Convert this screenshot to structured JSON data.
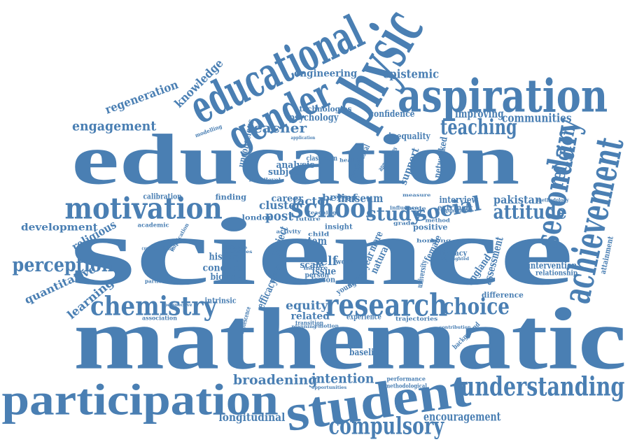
{
  "cloud": {
    "color": "#4a7fb3",
    "words": [
      "science",
      "mathematic",
      "education",
      "student",
      "participation",
      "aspiration",
      "physic",
      "educational",
      "achievement",
      "gender",
      "motivation",
      "research",
      "chemistry",
      "school",
      "secondary",
      "understanding",
      "compulsory",
      "teaching",
      "attitude",
      "study",
      "social",
      "choice",
      "perception",
      "religion",
      "broadening",
      "intention",
      "engagement",
      "regeneration",
      "knowledge",
      "epistemic",
      "communities",
      "improving",
      "teacher",
      "engineering",
      "psychology",
      "technologies",
      "confidence",
      "inequality",
      "unconscious",
      "analysis",
      "subject",
      "support",
      "networked",
      "pakistan",
      "interview",
      "extrinsic",
      "positive",
      "development",
      "religious",
      "quantitative",
      "learning",
      "calibration",
      "academic",
      "finding",
      "london",
      "museum",
      "factor",
      "career",
      "cluster",
      "post",
      "belief",
      "history",
      "concept",
      "biology",
      "stem",
      "project",
      "natural",
      "more",
      "female",
      "assessment",
      "england",
      "literacy",
      "issue",
      "self",
      "scale",
      "lesson",
      "efficacy",
      "equity",
      "related",
      "experience",
      "intrinsic",
      "association",
      "difference",
      "intervention",
      "relationship",
      "attainment",
      "longitudinal",
      "encouragement",
      "baseline",
      "performance",
      "methodological",
      "opportunities",
      "trajectories",
      "transition",
      "adolescence",
      "year",
      "university",
      "professional",
      "classroom",
      "methodology",
      "modelling",
      "implication",
      "defence",
      "identities",
      "insight",
      "young",
      "survey",
      "media",
      "work",
      "person",
      "emotion",
      "contribution",
      "background",
      "planning",
      "perspective",
      "particular",
      "conceptualising",
      "multilevel",
      "approaches",
      "application",
      "qualitative",
      "highlighted",
      "measure",
      "influence",
      "mode",
      "grade",
      "method",
      "health",
      "rate",
      "activity",
      "child",
      "nature",
      "teaching",
      "hong",
      "kong",
      "future"
    ]
  }
}
